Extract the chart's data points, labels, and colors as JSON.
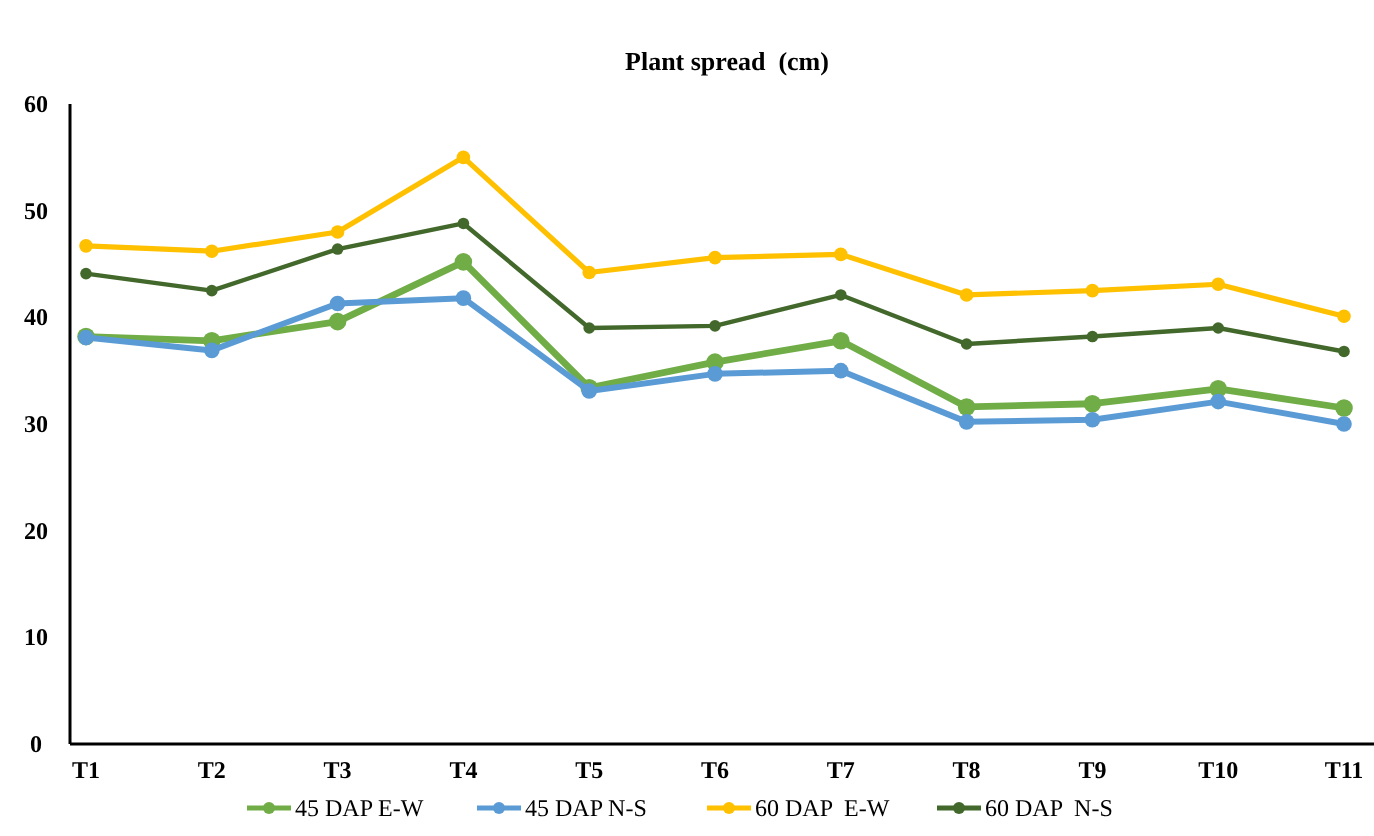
{
  "chart_data": {
    "type": "line",
    "title": "Plant spread  (cm)",
    "categories": [
      "T1",
      "T2",
      "T3",
      "T4",
      "T5",
      "T6",
      "T7",
      "T8",
      "T9",
      "T10",
      "T11"
    ],
    "series": [
      {
        "name": "45 DAP E-W",
        "color": "#70ad47",
        "values": [
          38.2,
          37.8,
          39.6,
          45.2,
          33.4,
          35.8,
          37.8,
          31.6,
          31.9,
          33.3,
          31.5
        ]
      },
      {
        "name": "45 DAP N-S",
        "color": "#5b9bd5",
        "values": [
          38.1,
          36.9,
          41.3,
          41.8,
          33.1,
          34.7,
          35.0,
          30.2,
          30.4,
          32.1,
          30.0
        ]
      },
      {
        "name": "60 DAP  E-W",
        "color": "#ffc000",
        "values": [
          46.7,
          46.2,
          48.0,
          55.0,
          44.2,
          45.6,
          45.9,
          42.1,
          42.5,
          43.1,
          40.1
        ]
      },
      {
        "name": "60 DAP  N-S",
        "color": "#43682b",
        "values": [
          44.1,
          42.5,
          46.4,
          48.8,
          39.0,
          39.2,
          42.1,
          37.5,
          38.2,
          39.0,
          36.8
        ]
      }
    ],
    "ylim": [
      0,
      60
    ],
    "yticks": [
      0,
      10,
      20,
      30,
      40,
      50,
      60
    ],
    "grid": false,
    "legend": "bottom",
    "marker": "circle",
    "line_style": "solid"
  }
}
